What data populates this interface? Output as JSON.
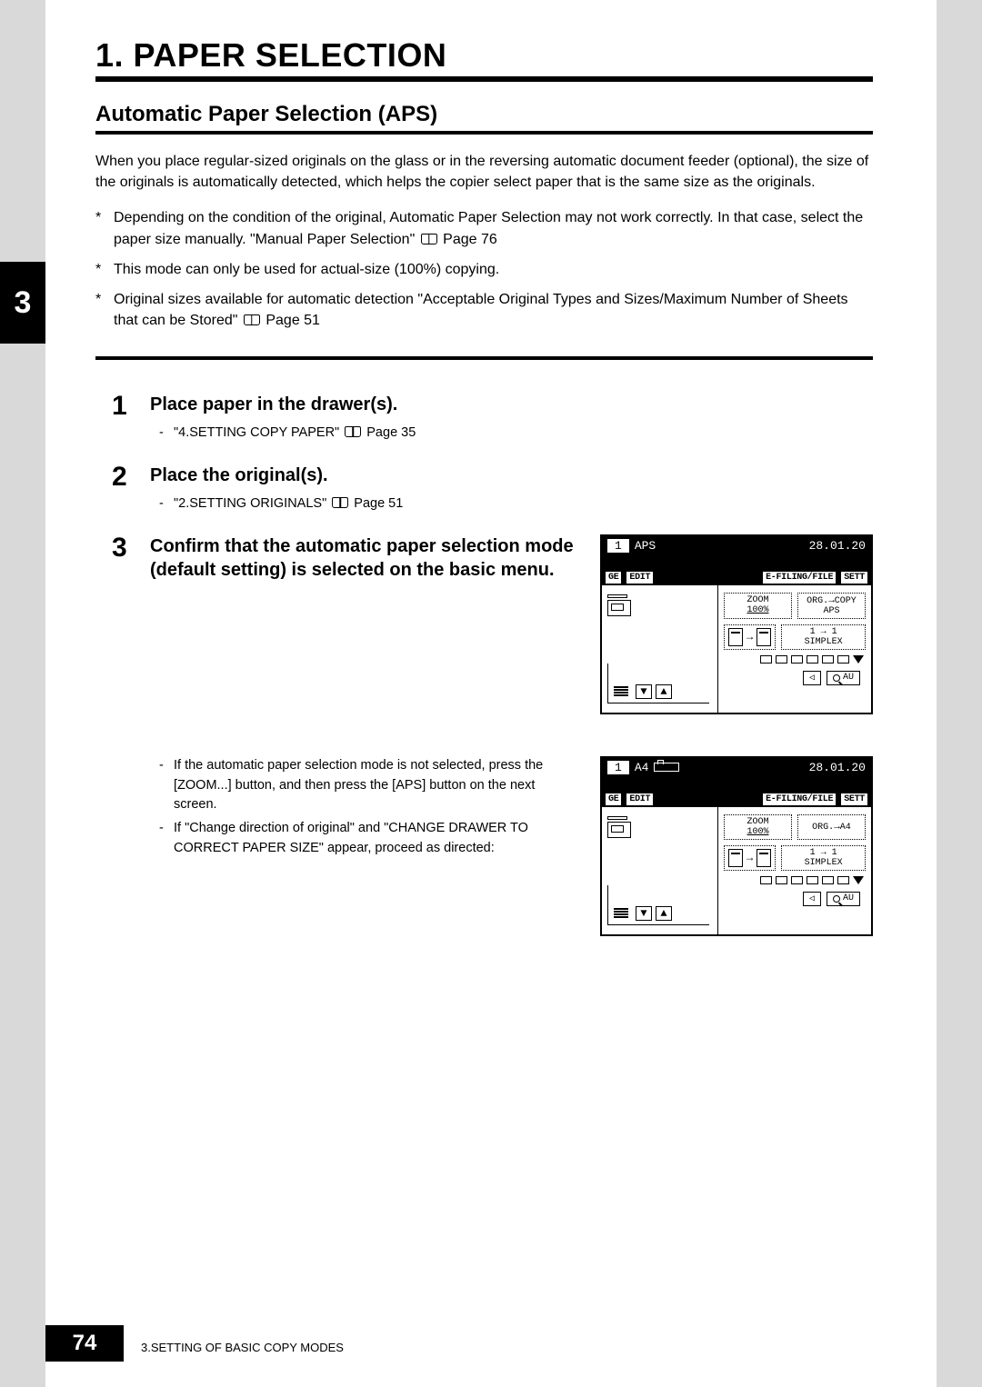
{
  "chapter": {
    "side_tab": "3",
    "title": "1. PAPER SELECTION"
  },
  "section": {
    "title": "Automatic Paper Selection (APS)",
    "intro": "When you place regular-sized originals on the glass or in the reversing automatic document feeder (optional), the size of the originals is automatically detected, which helps the copier select paper that is the same size as the originals.",
    "notes": [
      {
        "text_a": "Depending on the condition of the original, Automatic Paper Selection may not work correctly. In that case, select the paper size manually. \"Manual Paper Selection\" ",
        "page_ref": "Page 76"
      },
      {
        "text_a": "This mode can only be used for actual-size (100%) copying.",
        "page_ref": ""
      },
      {
        "text_a": "Original sizes available for automatic detection \"Acceptable Original Types and Sizes/Maximum Number of Sheets that can be Stored\" ",
        "page_ref": "Page 51"
      }
    ]
  },
  "steps": [
    {
      "num": "1",
      "title": "Place paper in the drawer(s).",
      "subs": [
        {
          "text": "\"4.SETTING COPY PAPER\" ",
          "page_ref": "Page 35"
        }
      ]
    },
    {
      "num": "2",
      "title": "Place the original(s).",
      "subs": [
        {
          "text": "\"2.SETTING ORIGINALS\" ",
          "page_ref": "Page 51"
        }
      ]
    },
    {
      "num": "3",
      "title": "Confirm that the automatic paper selection mode (default setting) is selected on the basic menu.",
      "lcd_index": 0,
      "below_subs": [
        {
          "text": "If the automatic paper selection mode is not selected, press the [ZOOM...] button, and then press the [APS] button on the next screen."
        },
        {
          "text": "If \"Change direction of original\" and \"CHANGE DRAWER TO CORRECT PAPER SIZE\" appear, proceed as directed:"
        }
      ],
      "lcd_below_index": 1
    }
  ],
  "lcds": [
    {
      "count": "1",
      "mode": "APS",
      "show_landscape": false,
      "date": "28.01.20",
      "tabs": [
        "GE",
        "EDIT",
        "E-FILING/FILE",
        "SETT"
      ],
      "zoom_a": "ZOOM",
      "zoom_b": "100%",
      "org_a": "ORG.",
      "org_arrow": "→",
      "org_b": "COPY",
      "org_c": "APS",
      "duplex_a": "1 → 1",
      "duplex_b": "SIMPLEX",
      "au_label": "AU",
      "tri_label": "◁"
    },
    {
      "count": "1",
      "mode": "A4",
      "show_landscape": true,
      "date": "28.01.20",
      "tabs": [
        "GE",
        "EDIT",
        "E-FILING/FILE",
        "SETT"
      ],
      "zoom_a": "ZOOM",
      "zoom_b": "100%",
      "org_a": "ORG.",
      "org_arrow": "→",
      "org_b": "A4",
      "org_c": "",
      "duplex_a": "1 → 1",
      "duplex_b": "SIMPLEX",
      "au_label": "AU",
      "tri_label": "◁"
    }
  ],
  "footer": {
    "page": "74",
    "text": "3.SETTING OF BASIC COPY MODES"
  }
}
